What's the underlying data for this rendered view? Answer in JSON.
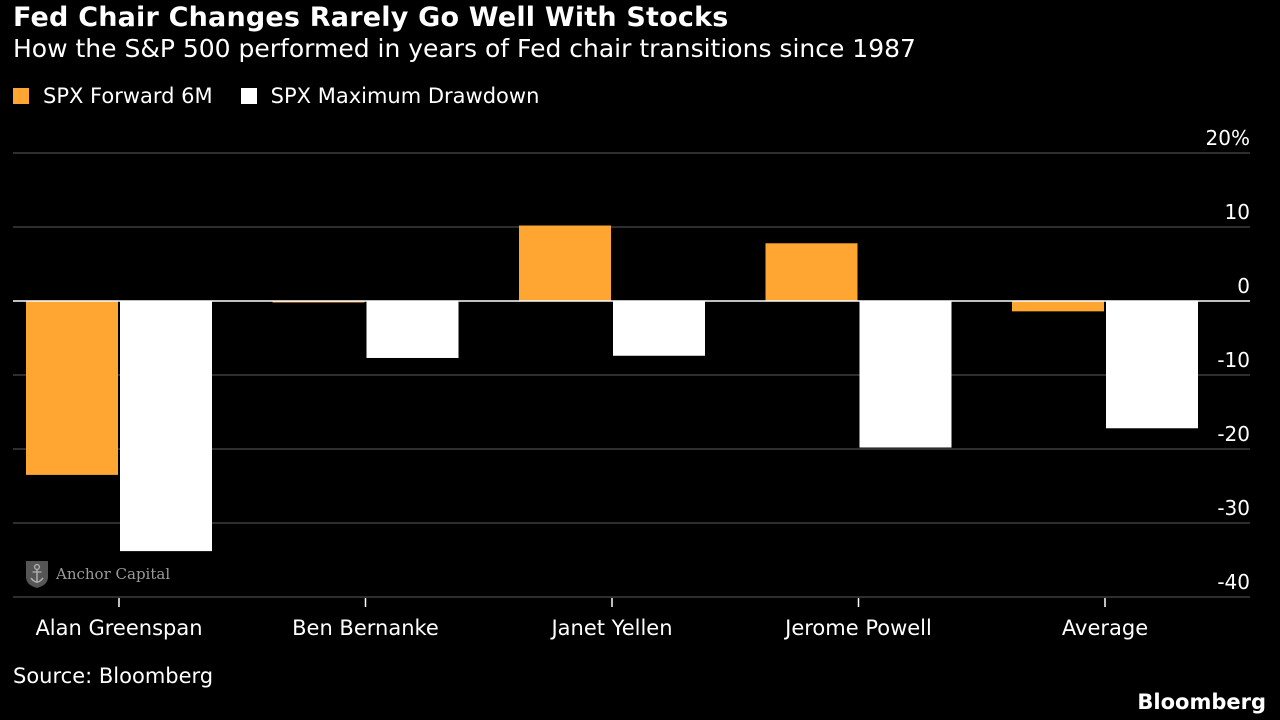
{
  "chart_data": {
    "type": "bar",
    "title": "Fed Chair Changes Rarely Go Well With Stocks",
    "subtitle": "How the S&P 500 performed in years of Fed chair transitions since 1987",
    "categories": [
      "Alan Greenspan",
      "Ben Bernanke",
      "Janet Yellen",
      "Jerome Powell",
      "Average"
    ],
    "series": [
      {
        "name": "SPX Forward 6M",
        "color": "#FFA532",
        "values": [
          -23.5,
          -0.2,
          10.2,
          7.8,
          -1.4
        ]
      },
      {
        "name": "SPX Maximum Drawdown",
        "color": "#FFFFFF",
        "values": [
          -33.8,
          -7.7,
          -7.4,
          -19.8,
          -17.2
        ]
      }
    ],
    "y_ticks": [
      {
        "value": 20,
        "label": "20%"
      },
      {
        "value": 10,
        "label": "10"
      },
      {
        "value": 0,
        "label": "0"
      },
      {
        "value": -10,
        "label": "-10"
      },
      {
        "value": -20,
        "label": "-20"
      },
      {
        "value": -30,
        "label": "-30"
      },
      {
        "value": -40,
        "label": "-40"
      }
    ],
    "ylim": [
      -40,
      20
    ],
    "grid": true,
    "legend_position": "top-left",
    "source": "Source: Bloomberg",
    "brand": "Bloomberg",
    "watermark": "Anchor Capital"
  }
}
